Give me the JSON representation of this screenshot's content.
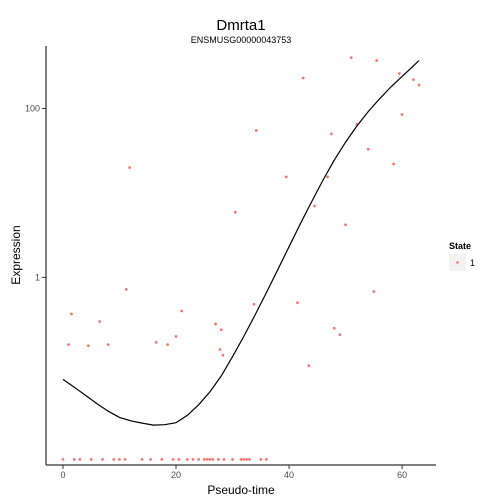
{
  "chart_data": {
    "type": "scatter",
    "title": "Dmrta1",
    "subtitle": "ENSMUSG00000043753",
    "xlabel": "Pseudo-time",
    "ylabel": "Expression",
    "x_ticks": [
      0,
      20,
      40,
      60
    ],
    "x_tick_labels": [
      "0",
      "20",
      "40",
      "60"
    ],
    "y_scale": "log10",
    "y_ticks": [
      1,
      100
    ],
    "y_tick_labels": [
      "1",
      "100"
    ],
    "xlim": [
      -3,
      66
    ],
    "ylim": [
      0.006,
      550
    ],
    "point_color": "#f8766d",
    "line_color": "#000000",
    "legend": {
      "title": "State",
      "position": "right",
      "entries": [
        {
          "label": "1",
          "color": "#f8766d"
        }
      ]
    },
    "series": [
      {
        "name": "1",
        "points": [
          [
            0.0,
            0.007
          ],
          [
            1.0,
            0.16
          ],
          [
            1.5,
            0.37
          ],
          [
            2.0,
            0.007
          ],
          [
            3.0,
            0.007
          ],
          [
            4.5,
            0.155
          ],
          [
            5.0,
            0.007
          ],
          [
            6.5,
            0.3
          ],
          [
            7.0,
            0.007
          ],
          [
            8.0,
            0.16
          ],
          [
            9.0,
            0.007
          ],
          [
            10.0,
            0.007
          ],
          [
            11.0,
            0.007
          ],
          [
            11.2,
            0.72
          ],
          [
            11.8,
            20.0
          ],
          [
            14.0,
            0.007
          ],
          [
            15.5,
            0.007
          ],
          [
            16.5,
            0.17
          ],
          [
            17.5,
            0.007
          ],
          [
            18.5,
            0.16
          ],
          [
            19.5,
            0.007
          ],
          [
            20.0,
            0.2
          ],
          [
            20.5,
            0.007
          ],
          [
            21.0,
            0.4
          ],
          [
            22.0,
            0.007
          ],
          [
            23.0,
            0.007
          ],
          [
            24.0,
            0.007
          ],
          [
            25.0,
            0.007
          ],
          [
            25.5,
            0.007
          ],
          [
            26.0,
            0.007
          ],
          [
            26.5,
            0.007
          ],
          [
            27.0,
            0.28
          ],
          [
            27.5,
            0.007
          ],
          [
            27.8,
            0.14
          ],
          [
            28.0,
            0.24
          ],
          [
            28.3,
            0.12
          ],
          [
            28.5,
            0.007
          ],
          [
            30.0,
            0.007
          ],
          [
            30.5,
            5.9
          ],
          [
            31.5,
            0.007
          ],
          [
            32.0,
            0.007
          ],
          [
            32.5,
            0.007
          ],
          [
            33.0,
            0.007
          ],
          [
            33.8,
            0.48
          ],
          [
            34.2,
            55.0
          ],
          [
            35.0,
            0.007
          ],
          [
            36.0,
            0.007
          ],
          [
            39.5,
            15.5
          ],
          [
            41.5,
            0.5
          ],
          [
            42.5,
            230.0
          ],
          [
            43.5,
            0.09
          ],
          [
            44.5,
            7.0
          ],
          [
            46.8,
            15.5
          ],
          [
            47.5,
            50.0
          ],
          [
            48.0,
            0.25
          ],
          [
            49.0,
            0.21
          ],
          [
            50.0,
            4.2
          ],
          [
            51.0,
            400.0
          ],
          [
            52.0,
            65.0
          ],
          [
            54.0,
            33.0
          ],
          [
            55.0,
            0.68
          ],
          [
            55.5,
            370.0
          ],
          [
            58.5,
            22.0
          ],
          [
            59.5,
            260.0
          ],
          [
            60.0,
            85.0
          ],
          [
            62.0,
            220.0
          ],
          [
            63.0,
            190.0
          ]
        ]
      }
    ],
    "fit_line": [
      [
        0,
        0.062
      ],
      [
        2,
        0.05
      ],
      [
        4,
        0.04
      ],
      [
        6,
        0.032
      ],
      [
        8,
        0.026
      ],
      [
        10,
        0.022
      ],
      [
        12,
        0.02
      ],
      [
        14,
        0.0188
      ],
      [
        16,
        0.0178
      ],
      [
        18,
        0.018
      ],
      [
        20,
        0.019
      ],
      [
        22,
        0.0232
      ],
      [
        24,
        0.031
      ],
      [
        26,
        0.044
      ],
      [
        28,
        0.068
      ],
      [
        30,
        0.115
      ],
      [
        32,
        0.2
      ],
      [
        34,
        0.36
      ],
      [
        36,
        0.66
      ],
      [
        38,
        1.23
      ],
      [
        40,
        2.3
      ],
      [
        42,
        4.3
      ],
      [
        44,
        7.9
      ],
      [
        46,
        14.2
      ],
      [
        48,
        24.5
      ],
      [
        50,
        40.0
      ],
      [
        52,
        62.0
      ],
      [
        54,
        92.0
      ],
      [
        56,
        130.0
      ],
      [
        58,
        180.0
      ],
      [
        60,
        240.0
      ],
      [
        62,
        320.0
      ],
      [
        63,
        370.0
      ]
    ]
  }
}
